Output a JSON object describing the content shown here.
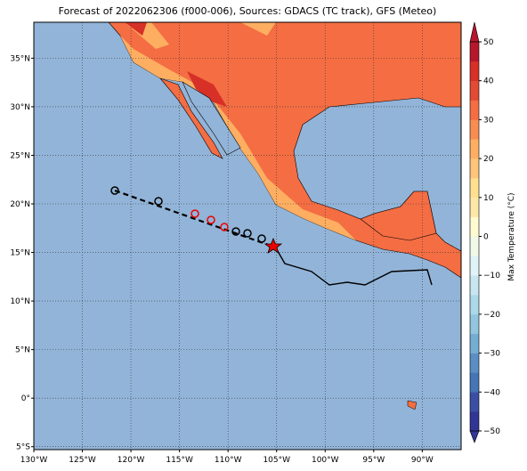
{
  "map": {
    "title": "Forecast of 2022062306 (f000-006), Sources: GDACS (TC track), GFS (Meteo)",
    "lon_ticks": [
      {
        "value": -130,
        "label": "130°W"
      },
      {
        "value": -125,
        "label": "125°W"
      },
      {
        "value": -120,
        "label": "120°W"
      },
      {
        "value": -115,
        "label": "115°W"
      },
      {
        "value": -110,
        "label": "110°W"
      },
      {
        "value": -105,
        "label": "105°W"
      },
      {
        "value": -100,
        "label": "100°W"
      },
      {
        "value": -95,
        "label": "95°W"
      },
      {
        "value": -90,
        "label": "90°W"
      }
    ],
    "lat_ticks": [
      {
        "value": 35,
        "label": "35°N"
      },
      {
        "value": 30,
        "label": "30°N"
      },
      {
        "value": 25,
        "label": "25°N"
      },
      {
        "value": 20,
        "label": "20°N"
      },
      {
        "value": 15,
        "label": "15°N"
      },
      {
        "value": 10,
        "label": "10°N"
      },
      {
        "value": 5,
        "label": "5°N"
      },
      {
        "value": 0,
        "label": "0°"
      },
      {
        "value": -5,
        "label": "5°S"
      }
    ],
    "xlim": [
      -130,
      -86
    ],
    "ylim": [
      -5.3,
      38.7
    ],
    "grid": true,
    "colorbar": {
      "label": "Max Temperature (°C)",
      "lim": [
        -50,
        50
      ],
      "ticks": [
        {
          "value": -50,
          "label": "−50"
        },
        {
          "value": -40,
          "label": "−40"
        },
        {
          "value": -30,
          "label": "−30"
        },
        {
          "value": -20,
          "label": "−20"
        },
        {
          "value": -10,
          "label": "−10"
        },
        0,
        10,
        20,
        30,
        40,
        50
      ],
      "colors": [
        "#313695",
        "#3a4fa3",
        "#4575b4",
        "#5b8fc3",
        "#74add1",
        "#92c5de",
        "#abd9e9",
        "#c8e6f0",
        "#e0f3f8",
        "#f0f9e8",
        "#fffbd0",
        "#fee8a8",
        "#fee090",
        "#fdc57a",
        "#fdae61",
        "#f88d52",
        "#f46d43",
        "#e34a33",
        "#d73027",
        "#b6172b"
      ]
    }
  }
}
